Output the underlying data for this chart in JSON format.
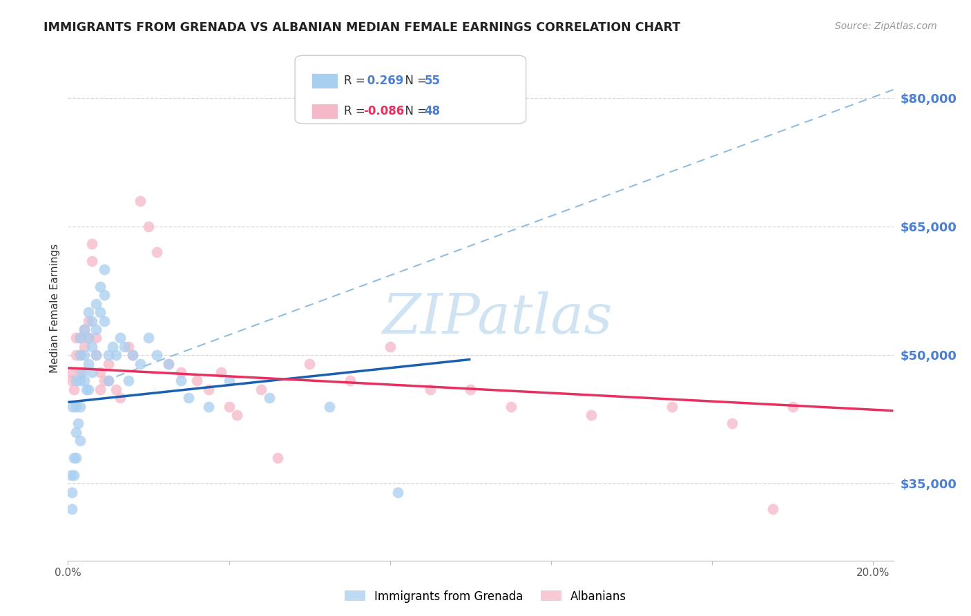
{
  "title": "IMMIGRANTS FROM GRENADA VS ALBANIAN MEDIAN FEMALE EARNINGS CORRELATION CHART",
  "source": "Source: ZipAtlas.com",
  "ylabel": "Median Female Earnings",
  "xlim": [
    0.0,
    0.205
  ],
  "ylim": [
    26000,
    85000
  ],
  "yticks": [
    35000,
    50000,
    65000,
    80000
  ],
  "ytick_labels": [
    "$35,000",
    "$50,000",
    "$65,000",
    "$80,000"
  ],
  "xticks": [
    0.0,
    0.04,
    0.08,
    0.12,
    0.16,
    0.2
  ],
  "xtick_labels": [
    "0.0%",
    "",
    "",
    "",
    "",
    "20.0%"
  ],
  "blue_color": "#a8cef0",
  "pink_color": "#f5b8c8",
  "trendline_blue_color": "#1a5fb0",
  "trendline_pink_color": "#e83060",
  "trendline_dashed_color": "#90bce0",
  "watermark_color": "#c8dff0",
  "background_color": "#ffffff",
  "grid_color": "#d8d8d8",
  "axis_label_color": "#4a7fd4",
  "title_color": "#222222",
  "source_color": "#999999",
  "legend_r_color": "#4a7fd4",
  "legend_n_color": "#4a7fd4",
  "grenada_x": [
    0.0008,
    0.001,
    0.001,
    0.0012,
    0.0015,
    0.0015,
    0.002,
    0.002,
    0.002,
    0.002,
    0.0025,
    0.003,
    0.003,
    0.003,
    0.003,
    0.003,
    0.0035,
    0.004,
    0.004,
    0.004,
    0.0045,
    0.005,
    0.005,
    0.005,
    0.005,
    0.006,
    0.006,
    0.006,
    0.007,
    0.007,
    0.007,
    0.008,
    0.008,
    0.009,
    0.009,
    0.009,
    0.01,
    0.01,
    0.011,
    0.012,
    0.013,
    0.014,
    0.015,
    0.016,
    0.018,
    0.02,
    0.022,
    0.025,
    0.028,
    0.03,
    0.035,
    0.04,
    0.05,
    0.065,
    0.082
  ],
  "grenada_y": [
    36000,
    34000,
    32000,
    44000,
    38000,
    36000,
    47000,
    44000,
    41000,
    38000,
    42000,
    52000,
    50000,
    47000,
    44000,
    40000,
    48000,
    53000,
    50000,
    47000,
    46000,
    55000,
    52000,
    49000,
    46000,
    54000,
    51000,
    48000,
    56000,
    53000,
    50000,
    58000,
    55000,
    60000,
    57000,
    54000,
    50000,
    47000,
    51000,
    50000,
    52000,
    51000,
    47000,
    50000,
    49000,
    52000,
    50000,
    49000,
    47000,
    45000,
    44000,
    47000,
    45000,
    44000,
    34000
  ],
  "albanian_x": [
    0.0008,
    0.001,
    0.0015,
    0.002,
    0.002,
    0.003,
    0.003,
    0.003,
    0.004,
    0.004,
    0.005,
    0.005,
    0.006,
    0.006,
    0.007,
    0.007,
    0.008,
    0.008,
    0.009,
    0.01,
    0.01,
    0.012,
    0.013,
    0.015,
    0.016,
    0.018,
    0.02,
    0.022,
    0.025,
    0.028,
    0.032,
    0.035,
    0.038,
    0.04,
    0.042,
    0.048,
    0.052,
    0.06,
    0.07,
    0.08,
    0.09,
    0.1,
    0.11,
    0.13,
    0.15,
    0.165,
    0.18,
    0.175
  ],
  "albanian_y": [
    48000,
    47000,
    46000,
    52000,
    50000,
    52000,
    50000,
    48000,
    53000,
    51000,
    54000,
    52000,
    63000,
    61000,
    52000,
    50000,
    48000,
    46000,
    47000,
    49000,
    47000,
    46000,
    45000,
    51000,
    50000,
    68000,
    65000,
    62000,
    49000,
    48000,
    47000,
    46000,
    48000,
    44000,
    43000,
    46000,
    38000,
    49000,
    47000,
    51000,
    46000,
    46000,
    44000,
    43000,
    44000,
    42000,
    44000,
    32000
  ],
  "blue_trendline_x": [
    0.0,
    0.1
  ],
  "blue_trendline_y": [
    44500,
    49500
  ],
  "pink_trendline_x": [
    0.0,
    0.205
  ],
  "pink_trendline_y": [
    48500,
    43500
  ],
  "dashed_trendline_x": [
    0.012,
    0.205
  ],
  "dashed_trendline_y": [
    47500,
    81000
  ]
}
